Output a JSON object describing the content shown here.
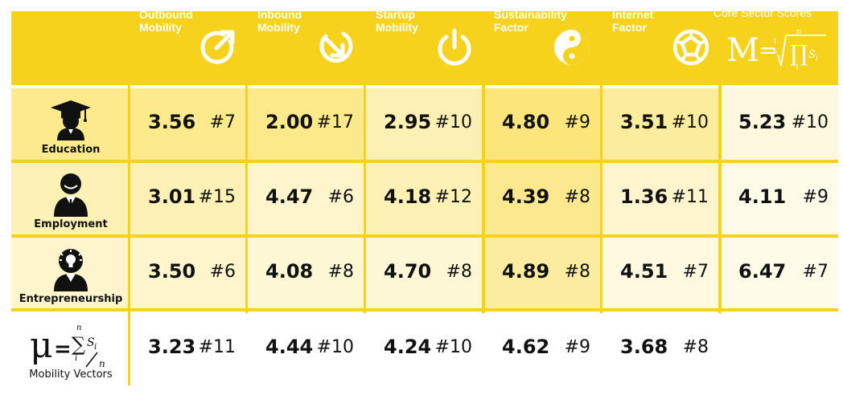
{
  "columns": [
    {
      "line1": "Outbound",
      "line2": "Mobility",
      "icon": "outbound-arrow-icon"
    },
    {
      "line1": "Inbound",
      "line2": "Mobility",
      "icon": "inbound-arrow-icon"
    },
    {
      "line1": "Startup",
      "line2": "Mobility",
      "icon": "power-icon"
    },
    {
      "line1": "Sustainability",
      "line2": "Factor",
      "icon": "yin-yang-icon"
    },
    {
      "line1": "Internet",
      "line2": "Factor",
      "icon": "globe-network-icon"
    }
  ],
  "core": {
    "title": "Core Sector Scores",
    "formula_symbol": "M"
  },
  "rows": [
    {
      "label": "Education",
      "icon": "graduate-icon",
      "cells": [
        [
          "3.56",
          "#7"
        ],
        [
          "2.00",
          "#17"
        ],
        [
          "2.95",
          "#10"
        ],
        [
          "4.80",
          "#9"
        ],
        [
          "3.51",
          "#10"
        ],
        [
          "5.23",
          "#10"
        ]
      ]
    },
    {
      "label": "Employment",
      "icon": "businessman-icon",
      "cells": [
        [
          "3.01",
          "#15"
        ],
        [
          "4.47",
          "#6"
        ],
        [
          "4.18",
          "#12"
        ],
        [
          "4.39",
          "#8"
        ],
        [
          "1.36",
          "#11"
        ],
        [
          "4.11",
          "#9"
        ]
      ]
    },
    {
      "label": "Entrepreneurship",
      "icon": "entrepreneur-lightbulb-icon",
      "cells": [
        [
          "3.50",
          "#6"
        ],
        [
          "4.08",
          "#8"
        ],
        [
          "4.70",
          "#8"
        ],
        [
          "4.89",
          "#8"
        ],
        [
          "4.51",
          "#7"
        ],
        [
          "6.47",
          "#7"
        ]
      ]
    }
  ],
  "vectors": {
    "label": "Mobility Vectors",
    "symbol": "μ",
    "cells": [
      [
        "3.23",
        "#11"
      ],
      [
        "4.44",
        "#10"
      ],
      [
        "4.24",
        "#10"
      ],
      [
        "4.62",
        "#9"
      ],
      [
        "3.68",
        "#8"
      ]
    ]
  },
  "colors": {
    "accent": "#f7d21c"
  }
}
